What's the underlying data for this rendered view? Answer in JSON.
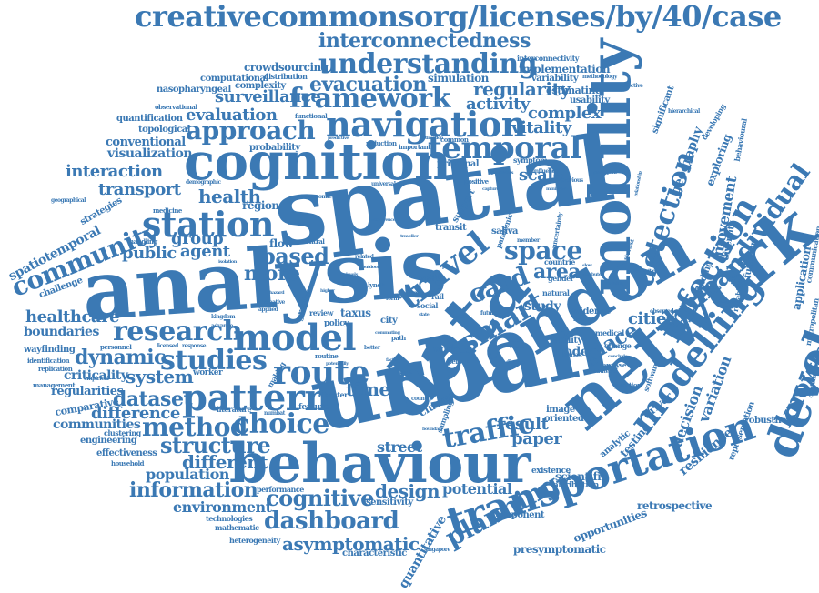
{
  "words": {
    "w01": "creativecommonsorg/licenses/by/40/case",
    "w02": "interconnectedness",
    "w03": "understanding",
    "w04": "evacuation",
    "w05": "framework",
    "w06": "regularity",
    "w07": "navigation",
    "w08": "cognition",
    "w09": "temporal",
    "w10": "mobility",
    "w11": "spatial",
    "w12": "analysis",
    "w13": "data",
    "w14": "london",
    "w15": "network",
    "w16": "urban",
    "w17": "behaviour",
    "w18": "transportation",
    "w19": "development",
    "w20": "modelling",
    "w21": "route",
    "w22": "pattern",
    "w23": "choice",
    "w24": "model",
    "w25": "research",
    "w26": "station",
    "w27": "community",
    "w28": "approach",
    "w29": "evaluation",
    "w30": "interaction",
    "w31": "transport",
    "w32": "healthcare",
    "w33": "studies",
    "w34": "dashboard",
    "w35": "cognitive",
    "w36": "information",
    "w37": "method",
    "w38": "structure",
    "w39": "planning",
    "w40": "traffic",
    "w41": "design",
    "w42": "asymptomatic",
    "w43": "knowledge",
    "w44": "individual",
    "w45": "infection",
    "w46": "detection",
    "w47": "human",
    "w48": "smart",
    "w49": "travel",
    "w50": "card",
    "w51": "space",
    "w52": "area",
    "w53": "place",
    "w54": "cities",
    "w55": "dynamic",
    "w56": "system",
    "w57": "dataset",
    "w58": "difference",
    "w59": "population",
    "w60": "different",
    "w61": "environment",
    "w62": "group",
    "w63": "public",
    "w64": "agent",
    "w65": "based",
    "w66": "more",
    "w67": "time",
    "w68": "health",
    "w69": "surveillance",
    "w70": "activity",
    "w71": "complex",
    "w72": "vitality",
    "w73": "scale",
    "w74": "result",
    "w75": "paper",
    "w76": "street",
    "w77": "potential",
    "w78": "presymptomatic",
    "w79": "retrospective",
    "w80": "opportunities",
    "w81": "quantitative",
    "w82": "spatiotemporal",
    "w83": "boundaries",
    "w84": "criticality",
    "w85": "regularities",
    "w86": "communities",
    "w87": "comparative",
    "w88": "visualization",
    "w89": "conventional",
    "w90": "quantification",
    "w91": "topological",
    "w92": "computational",
    "w93": "nasopharyngeal",
    "w94": "crowdsourcing",
    "w95": "implementation",
    "w96": "variability",
    "w97": "estimating",
    "w98": "usability",
    "w99": "interconnectivity",
    "w100": "simulation",
    "w101": "complexity",
    "w102": "distribution",
    "w103": "observational",
    "w104": "functional",
    "w105": "probability",
    "w106": "strategies",
    "w107": "challenge",
    "w108": "wayfinding",
    "w109": "identification",
    "w110": "replication",
    "w111": "management",
    "w112": "engineering",
    "w113": "effectiveness",
    "w114": "household",
    "w115": "clustering",
    "w116": "technologies",
    "w117": "mathematic",
    "w118": "heterogeneity",
    "w119": "characteristic",
    "w120": "singapore",
    "w121": "performance",
    "w122": "sensitivity",
    "w123": "component",
    "w124": "attribution",
    "w125": "existence",
    "w126": "scientific",
    "w127": "analytic",
    "w128": "testing",
    "w129": "driver",
    "w130": "oriented",
    "w131": "image",
    "w132": "cluster",
    "w133": "study",
    "w134": "node",
    "w135": "ability",
    "w136": "evidence",
    "w137": "road",
    "w138": "taxus",
    "w139": "policy",
    "w140": "review",
    "w141": "flow",
    "w142": "region",
    "w143": "saliva",
    "w144": "transit",
    "w145": "support",
    "w146": "natural",
    "w147": "gender",
    "w148": "countrie",
    "w149": "medical",
    "w150": "change",
    "w151": "analyse",
    "w152": "junction",
    "w153": "software",
    "w154": "representation",
    "w155": "resilience",
    "w156": "decision",
    "w157": "variation",
    "w158": "movement",
    "w159": "finding",
    "w160": "function",
    "w161": "diversity",
    "w162": "reliability",
    "w163": "application",
    "w164": "communication",
    "w165": "metropolitan",
    "w166": "contemporary",
    "w167": "robustness",
    "w168": "geography",
    "w169": "exploring",
    "w170": "significant",
    "w171": "hierarchical",
    "w172": "behavioural",
    "w173": "developing",
    "w174": "effective",
    "w175": "symptom",
    "w176": "pandemic",
    "w177": "principal",
    "w178": "uncertainty",
    "w179": "positive",
    "w180": "medicine",
    "w181": "handling",
    "w182": "central",
    "w183": "greater",
    "w184": "making",
    "w185": "worker",
    "w186": "empirical",
    "w187": "literature",
    "w188": "feature",
    "w189": "disaster",
    "w190": "routine",
    "w191": "social",
    "w192": "rail",
    "w193": "role",
    "w194": "lynch",
    "w195": "sar",
    "w196": "city",
    "w197": "path",
    "w198": "work",
    "w199": "person",
    "w200": "country",
    "w201": "personnel",
    "w202": "licensed",
    "w203": "response",
    "w204": "kingdom",
    "w205": "advance",
    "w206": "applied",
    "w207": "numbat",
    "w208": "sampling",
    "w209": "geographical",
    "w210": "reduction",
    "w211": "important",
    "w212": "common",
    "w213": "estimation",
    "w214": "previous",
    "w215": "influence",
    "w216": "properties",
    "w217": "universal",
    "w218": "demographic",
    "w219": "economic",
    "w220": "location",
    "w221": "related",
    "w222": "traveller",
    "w223": "member",
    "w224": "creative",
    "w225": "hazard",
    "w226": "higher",
    "w227": "form",
    "w228": "better",
    "w229": "factor",
    "w230": "motif",
    "w231": "future",
    "w232": "diverse",
    "w233": "strategic",
    "w234": "conclude",
    "w235": "analysing",
    "w236": "background",
    "w237": "shortest",
    "w238": "slow",
    "w239": "attribute",
    "w240": "building",
    "w241": "insight",
    "w242": "market",
    "w243": "relationship",
    "w244": "predictive",
    "w245": "methodology",
    "w246": "participant",
    "w247": "isolation",
    "w248": "cohort",
    "w249": "state",
    "w250": "levels",
    "w251": "theory",
    "w252": "point",
    "w253": "similarities",
    "w254": "outdoor",
    "w255": "capture",
    "w256": "boundary",
    "w257": "occurrence",
    "w258": "minimum",
    "w259": "potentially",
    "w260": "commuting",
    "w261": "observed",
    "w262": "indicator"
  },
  "colors": {
    "text": "#3b79b4",
    "background": "#ffffff"
  }
}
